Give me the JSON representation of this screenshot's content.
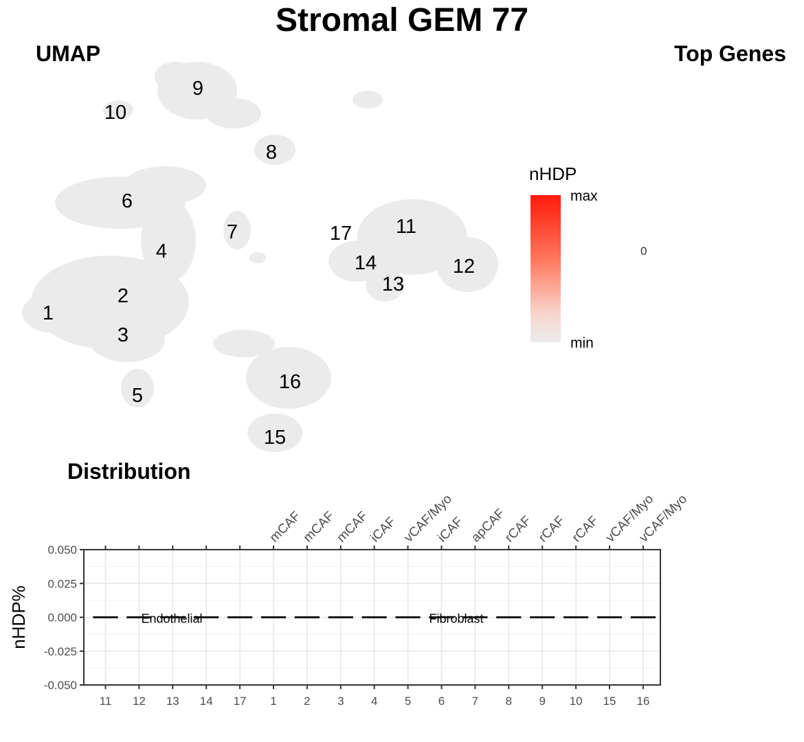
{
  "title": "Stromal GEM 77",
  "umap_panel": {
    "title": "UMAP",
    "cluster_labels": [
      {
        "label": "1"
      },
      {
        "label": "2"
      },
      {
        "label": "3"
      },
      {
        "label": "4"
      },
      {
        "label": "5"
      },
      {
        "label": "6"
      },
      {
        "label": "7"
      },
      {
        "label": "8"
      },
      {
        "label": "9"
      },
      {
        "label": "10"
      },
      {
        "label": "11"
      },
      {
        "label": "12"
      },
      {
        "label": "13"
      },
      {
        "label": "14"
      },
      {
        "label": "15"
      },
      {
        "label": "16"
      },
      {
        "label": "17"
      }
    ],
    "point_color": "#ebebeb"
  },
  "legend": {
    "title": "nHDP",
    "max_label": "max",
    "min_label": "min",
    "color_high": "#ff1a0a",
    "color_low": "#ebebeb"
  },
  "top_genes_panel": {
    "title": "Top Genes",
    "value": "0"
  },
  "distribution_panel": {
    "title": "Distribution"
  },
  "chart_data": {
    "type": "bar",
    "ylabel": "nHDP%",
    "xlabel": "",
    "ylim": [
      -0.05,
      0.05
    ],
    "yticks": [
      "0.050",
      "0.025",
      "0.000",
      "-0.025",
      "-0.050"
    ],
    "ytick_values": [
      0.05,
      0.025,
      0,
      -0.025,
      -0.05
    ],
    "grid": true,
    "groups": [
      {
        "name": "Endothelial",
        "categories": [
          "11",
          "12",
          "13",
          "14",
          "17"
        ],
        "subtypes": [
          "",
          "",
          "",
          "",
          ""
        ]
      },
      {
        "name": "Fibroblast",
        "categories": [
          "1",
          "2",
          "3",
          "4",
          "5",
          "6",
          "7",
          "8",
          "9",
          "10",
          "15",
          "16"
        ],
        "subtypes": [
          "mCAF",
          "mCAF",
          "mCAF",
          "iCAF",
          "vCAF/Myo",
          "iCAF",
          "apCAF",
          "rCAF",
          "rCAF",
          "rCAF",
          "vCAF/Myo",
          "vCAF/Myo"
        ]
      }
    ],
    "values": [
      0,
      0,
      0,
      0,
      0,
      0,
      0,
      0,
      0,
      0,
      0,
      0,
      0,
      0,
      0,
      0,
      0
    ],
    "bar_color": "#1a1a1a"
  }
}
